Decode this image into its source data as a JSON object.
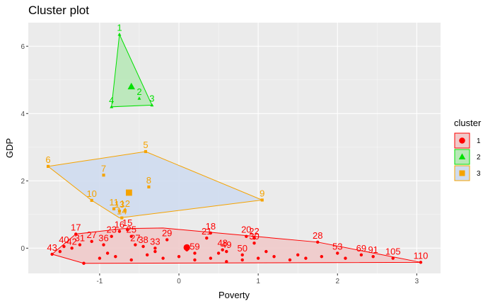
{
  "chart_data": {
    "type": "scatter",
    "title": "Cluster plot",
    "xlabel": "Poverty",
    "ylabel": "GDP",
    "xlim": [
      -1.9,
      3.3
    ],
    "ylim": [
      -0.75,
      6.7
    ],
    "x_ticks": [
      -1,
      0,
      1,
      2,
      3
    ],
    "y_ticks": [
      0,
      2,
      4,
      6
    ],
    "grid": true,
    "legend": {
      "title": "cluster",
      "position": "right",
      "entries": [
        "1",
        "2",
        "3"
      ]
    },
    "colors": {
      "1": "#ff0000",
      "2": "#00e000",
      "3": "#f5a300"
    },
    "fills": {
      "1": "#f0caca",
      "2": "#b8e8b8",
      "3": "#cfdcf0"
    },
    "series": [
      {
        "name": "1",
        "shape": "circle",
        "hull": [
          [
            -1.6,
            -0.18
          ],
          [
            -1.3,
            0.42
          ],
          [
            -0.7,
            0.58
          ],
          [
            -0.2,
            0.6
          ],
          [
            1.75,
            0.18
          ],
          [
            3.05,
            -0.42
          ],
          [
            -1.2,
            -0.45
          ]
        ],
        "centroid": [
          0.1,
          0.02
        ],
        "points": [
          {
            "label": "43",
            "x": -1.6,
            "y": -0.18
          },
          {
            "label": "17",
            "x": -1.3,
            "y": 0.42
          },
          {
            "label": "27",
            "x": -1.1,
            "y": 0.2
          },
          {
            "label": "31",
            "x": -1.25,
            "y": 0.1
          },
          {
            "label": "40",
            "x": -1.45,
            "y": 0.05
          },
          {
            "label": "42",
            "x": -1.35,
            "y": 0.0
          },
          {
            "label": "36",
            "x": -0.95,
            "y": 0.1
          },
          {
            "label": "16",
            "x": -0.75,
            "y": 0.5
          },
          {
            "label": "15",
            "x": -0.65,
            "y": 0.55
          },
          {
            "label": "25",
            "x": -0.6,
            "y": 0.35
          },
          {
            "label": "23",
            "x": -0.85,
            "y": 0.35
          },
          {
            "label": "27",
            "x": -0.55,
            "y": 0.1
          },
          {
            "label": "38",
            "x": -0.45,
            "y": 0.05
          },
          {
            "label": "29",
            "x": -0.15,
            "y": 0.25
          },
          {
            "label": "33",
            "x": -0.3,
            "y": 0.0
          },
          {
            "label": "18",
            "x": 0.4,
            "y": 0.45
          },
          {
            "label": "21",
            "x": 0.35,
            "y": 0.3
          },
          {
            "label": "20",
            "x": 0.85,
            "y": 0.35
          },
          {
            "label": "22",
            "x": 0.95,
            "y": 0.3
          },
          {
            "label": "30",
            "x": 0.95,
            "y": 0.15
          },
          {
            "label": "28",
            "x": 1.75,
            "y": 0.18
          },
          {
            "label": "49",
            "x": 0.6,
            "y": -0.1
          },
          {
            "label": "48",
            "x": 0.55,
            "y": -0.05
          },
          {
            "label": "59",
            "x": 0.2,
            "y": -0.15
          },
          {
            "label": "50",
            "x": 0.8,
            "y": -0.2
          },
          {
            "label": "53",
            "x": 2.0,
            "y": -0.15
          },
          {
            "label": "69",
            "x": 2.3,
            "y": -0.2
          },
          {
            "label": "91",
            "x": 2.45,
            "y": -0.25
          },
          {
            "label": "105",
            "x": 2.7,
            "y": -0.3
          },
          {
            "label": "110",
            "x": 3.05,
            "y": -0.42
          },
          {
            "label": "",
            "x": -1.2,
            "y": -0.45
          },
          {
            "label": "",
            "x": -1.0,
            "y": -0.3
          },
          {
            "label": "",
            "x": -0.8,
            "y": -0.25
          },
          {
            "label": "",
            "x": -0.6,
            "y": -0.35
          },
          {
            "label": "",
            "x": -0.4,
            "y": -0.2
          },
          {
            "label": "",
            "x": -0.2,
            "y": -0.3
          },
          {
            "label": "",
            "x": 0.0,
            "y": -0.25
          },
          {
            "label": "",
            "x": 0.2,
            "y": -0.35
          },
          {
            "label": "",
            "x": 0.4,
            "y": -0.3
          },
          {
            "label": "",
            "x": 0.6,
            "y": -0.4
          },
          {
            "label": "",
            "x": 0.8,
            "y": -0.35
          },
          {
            "label": "",
            "x": 1.0,
            "y": -0.3
          },
          {
            "label": "",
            "x": 1.2,
            "y": -0.25
          },
          {
            "label": "",
            "x": 1.4,
            "y": -0.35
          },
          {
            "label": "",
            "x": 1.6,
            "y": -0.3
          },
          {
            "label": "",
            "x": 1.8,
            "y": -0.25
          },
          {
            "label": "",
            "x": 2.1,
            "y": -0.3
          },
          {
            "label": "",
            "x": -1.5,
            "y": -0.1
          },
          {
            "label": "",
            "x": -0.9,
            "y": -0.15
          },
          {
            "label": "",
            "x": -0.3,
            "y": -0.1
          },
          {
            "label": "",
            "x": 0.1,
            "y": -0.05
          },
          {
            "label": "",
            "x": 0.5,
            "y": -0.15
          },
          {
            "label": "",
            "x": 1.1,
            "y": -0.1
          },
          {
            "label": "",
            "x": 1.5,
            "y": -0.2
          }
        ]
      },
      {
        "name": "2",
        "shape": "triangle",
        "hull": [
          [
            -0.75,
            6.35
          ],
          [
            -0.34,
            4.25
          ],
          [
            -0.85,
            4.2
          ]
        ],
        "centroid": [
          -0.6,
          4.8
        ],
        "points": [
          {
            "label": "1",
            "x": -0.75,
            "y": 6.35
          },
          {
            "label": "2",
            "x": -0.5,
            "y": 4.45
          },
          {
            "label": "3",
            "x": -0.34,
            "y": 4.25
          },
          {
            "label": "4",
            "x": -0.85,
            "y": 4.2
          }
        ]
      },
      {
        "name": "3",
        "shape": "square",
        "hull": [
          [
            -1.65,
            2.43
          ],
          [
            -0.42,
            2.87
          ],
          [
            1.05,
            1.43
          ],
          [
            -0.75,
            0.9
          ],
          [
            -1.1,
            1.42
          ]
        ],
        "centroid": [
          -0.63,
          1.65
        ],
        "points": [
          {
            "label": "6",
            "x": -1.65,
            "y": 2.43
          },
          {
            "label": "5",
            "x": -0.42,
            "y": 2.87
          },
          {
            "label": "7",
            "x": -0.95,
            "y": 2.17
          },
          {
            "label": "8",
            "x": -0.38,
            "y": 1.82
          },
          {
            "label": "9",
            "x": 1.05,
            "y": 1.43
          },
          {
            "label": "10",
            "x": -1.1,
            "y": 1.42
          },
          {
            "label": "11",
            "x": -0.82,
            "y": 1.17
          },
          {
            "label": "13",
            "x": -0.75,
            "y": 1.1
          },
          {
            "label": "12",
            "x": -0.68,
            "y": 1.12
          },
          {
            "label": "14",
            "x": -0.72,
            "y": 0.9
          }
        ]
      }
    ]
  }
}
